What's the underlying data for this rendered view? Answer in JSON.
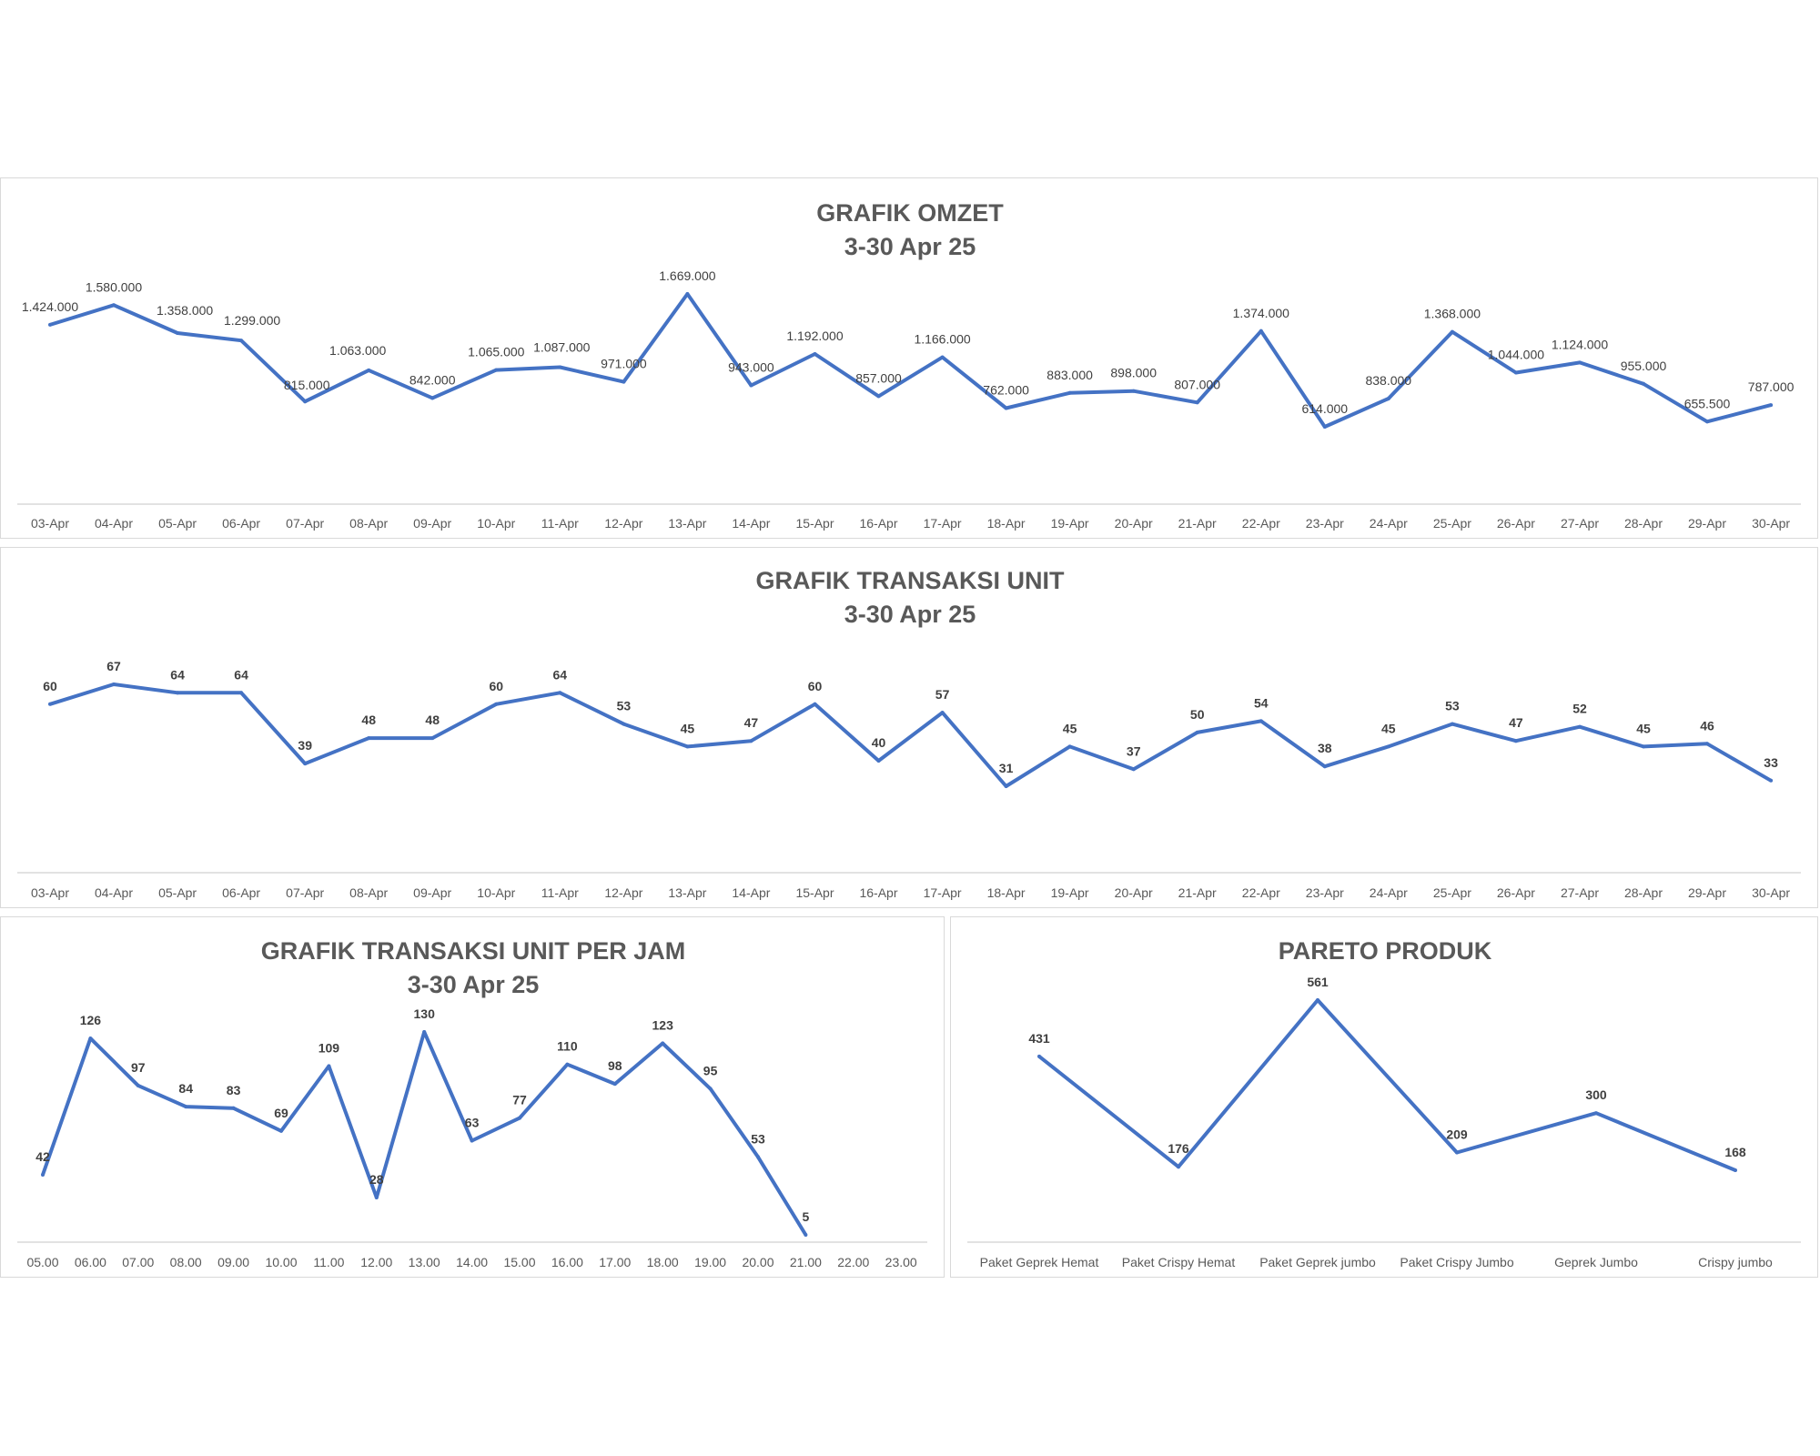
{
  "theme": {
    "line_color": "#4472c4",
    "axis_color": "#d9d9d9",
    "title_color": "#595959",
    "label_color": "#404040"
  },
  "chart_data": [
    {
      "id": "omzet",
      "type": "line",
      "title": "GRAFIK OMZET",
      "subtitle": "3-30 Apr 25",
      "categories": [
        "03-Apr",
        "04-Apr",
        "05-Apr",
        "06-Apr",
        "07-Apr",
        "08-Apr",
        "09-Apr",
        "10-Apr",
        "11-Apr",
        "12-Apr",
        "13-Apr",
        "14-Apr",
        "15-Apr",
        "16-Apr",
        "17-Apr",
        "18-Apr",
        "19-Apr",
        "20-Apr",
        "21-Apr",
        "22-Apr",
        "23-Apr",
        "24-Apr",
        "25-Apr",
        "26-Apr",
        "27-Apr",
        "28-Apr",
        "29-Apr",
        "30-Apr"
      ],
      "values": [
        1424000,
        1580000,
        1358000,
        1299000,
        815000,
        1063000,
        842000,
        1065000,
        1087000,
        971000,
        1669000,
        943000,
        1192000,
        857000,
        1166000,
        762000,
        883000,
        898000,
        807000,
        1374000,
        614000,
        838000,
        1368000,
        1044000,
        1124000,
        955000,
        655500,
        787000
      ],
      "data_labels": [
        "1.424.000",
        "1.580.000",
        "1.358.000",
        "1.299.000",
        "815.000",
        "1.063.000",
        "842.000",
        "1.065.000",
        "1.087.000",
        "971.000",
        "1.669.000",
        "943.000",
        "1.192.000",
        "857.000",
        "1.166.000",
        "762.000",
        "883.000",
        "898.000",
        "807.000",
        "1.374.000",
        "614.000",
        "838.000",
        "1.368.000",
        "1.044.000",
        "1.124.000",
        "955.000",
        "655.500",
        "787.000"
      ],
      "bold_labels": false,
      "grid": false,
      "legend": "none"
    },
    {
      "id": "unit",
      "type": "line",
      "title": "GRAFIK TRANSAKSI UNIT",
      "subtitle": "3-30 Apr 25",
      "categories": [
        "03-Apr",
        "04-Apr",
        "05-Apr",
        "06-Apr",
        "07-Apr",
        "08-Apr",
        "09-Apr",
        "10-Apr",
        "11-Apr",
        "12-Apr",
        "13-Apr",
        "14-Apr",
        "15-Apr",
        "16-Apr",
        "17-Apr",
        "18-Apr",
        "19-Apr",
        "20-Apr",
        "21-Apr",
        "22-Apr",
        "23-Apr",
        "24-Apr",
        "25-Apr",
        "26-Apr",
        "27-Apr",
        "28-Apr",
        "29-Apr",
        "30-Apr"
      ],
      "values": [
        60,
        67,
        64,
        64,
        39,
        48,
        48,
        60,
        64,
        53,
        45,
        47,
        60,
        40,
        57,
        31,
        45,
        37,
        50,
        54,
        38,
        45,
        53,
        47,
        52,
        45,
        46,
        33
      ],
      "data_labels": [
        "60",
        "67",
        "64",
        "64",
        "39",
        "48",
        "48",
        "60",
        "64",
        "53",
        "45",
        "47",
        "60",
        "40",
        "57",
        "31",
        "45",
        "37",
        "50",
        "54",
        "38",
        "45",
        "53",
        "47",
        "52",
        "45",
        "46",
        "33"
      ],
      "bold_labels": true,
      "grid": false,
      "legend": "none"
    },
    {
      "id": "perjam",
      "type": "line",
      "title": "GRAFIK TRANSAKSI UNIT PER JAM",
      "subtitle": "3-30 Apr 25",
      "categories": [
        "05.00",
        "06.00",
        "07.00",
        "08.00",
        "09.00",
        "10.00",
        "11.00",
        "12.00",
        "13.00",
        "14.00",
        "15.00",
        "16.00",
        "17.00",
        "18.00",
        "19.00",
        "20.00",
        "21.00",
        "22.00",
        "23.00"
      ],
      "values": [
        42,
        126,
        97,
        84,
        83,
        69,
        109,
        28,
        130,
        63,
        77,
        110,
        98,
        123,
        95,
        53,
        5,
        null,
        null
      ],
      "data_labels": [
        "42",
        "126",
        "97",
        "84",
        "83",
        "69",
        "109",
        "28",
        "130",
        "63",
        "77",
        "110",
        "98",
        "123",
        "95",
        "53",
        "5",
        "",
        ""
      ],
      "bold_labels": true,
      "grid": false,
      "legend": "none"
    },
    {
      "id": "pareto",
      "type": "line",
      "title": "PARETO PRODUK",
      "subtitle": "",
      "categories": [
        "Paket Geprek Hemat",
        "Paket Crispy Hemat",
        "Paket Geprek jumbo",
        "Paket Crispy Jumbo",
        "Geprek Jumbo",
        "Crispy jumbo"
      ],
      "values": [
        431,
        176,
        561,
        209,
        300,
        168
      ],
      "data_labels": [
        "431",
        "176",
        "561",
        "209",
        "300",
        "168"
      ],
      "bold_labels": true,
      "grid": false,
      "legend": "none"
    }
  ]
}
